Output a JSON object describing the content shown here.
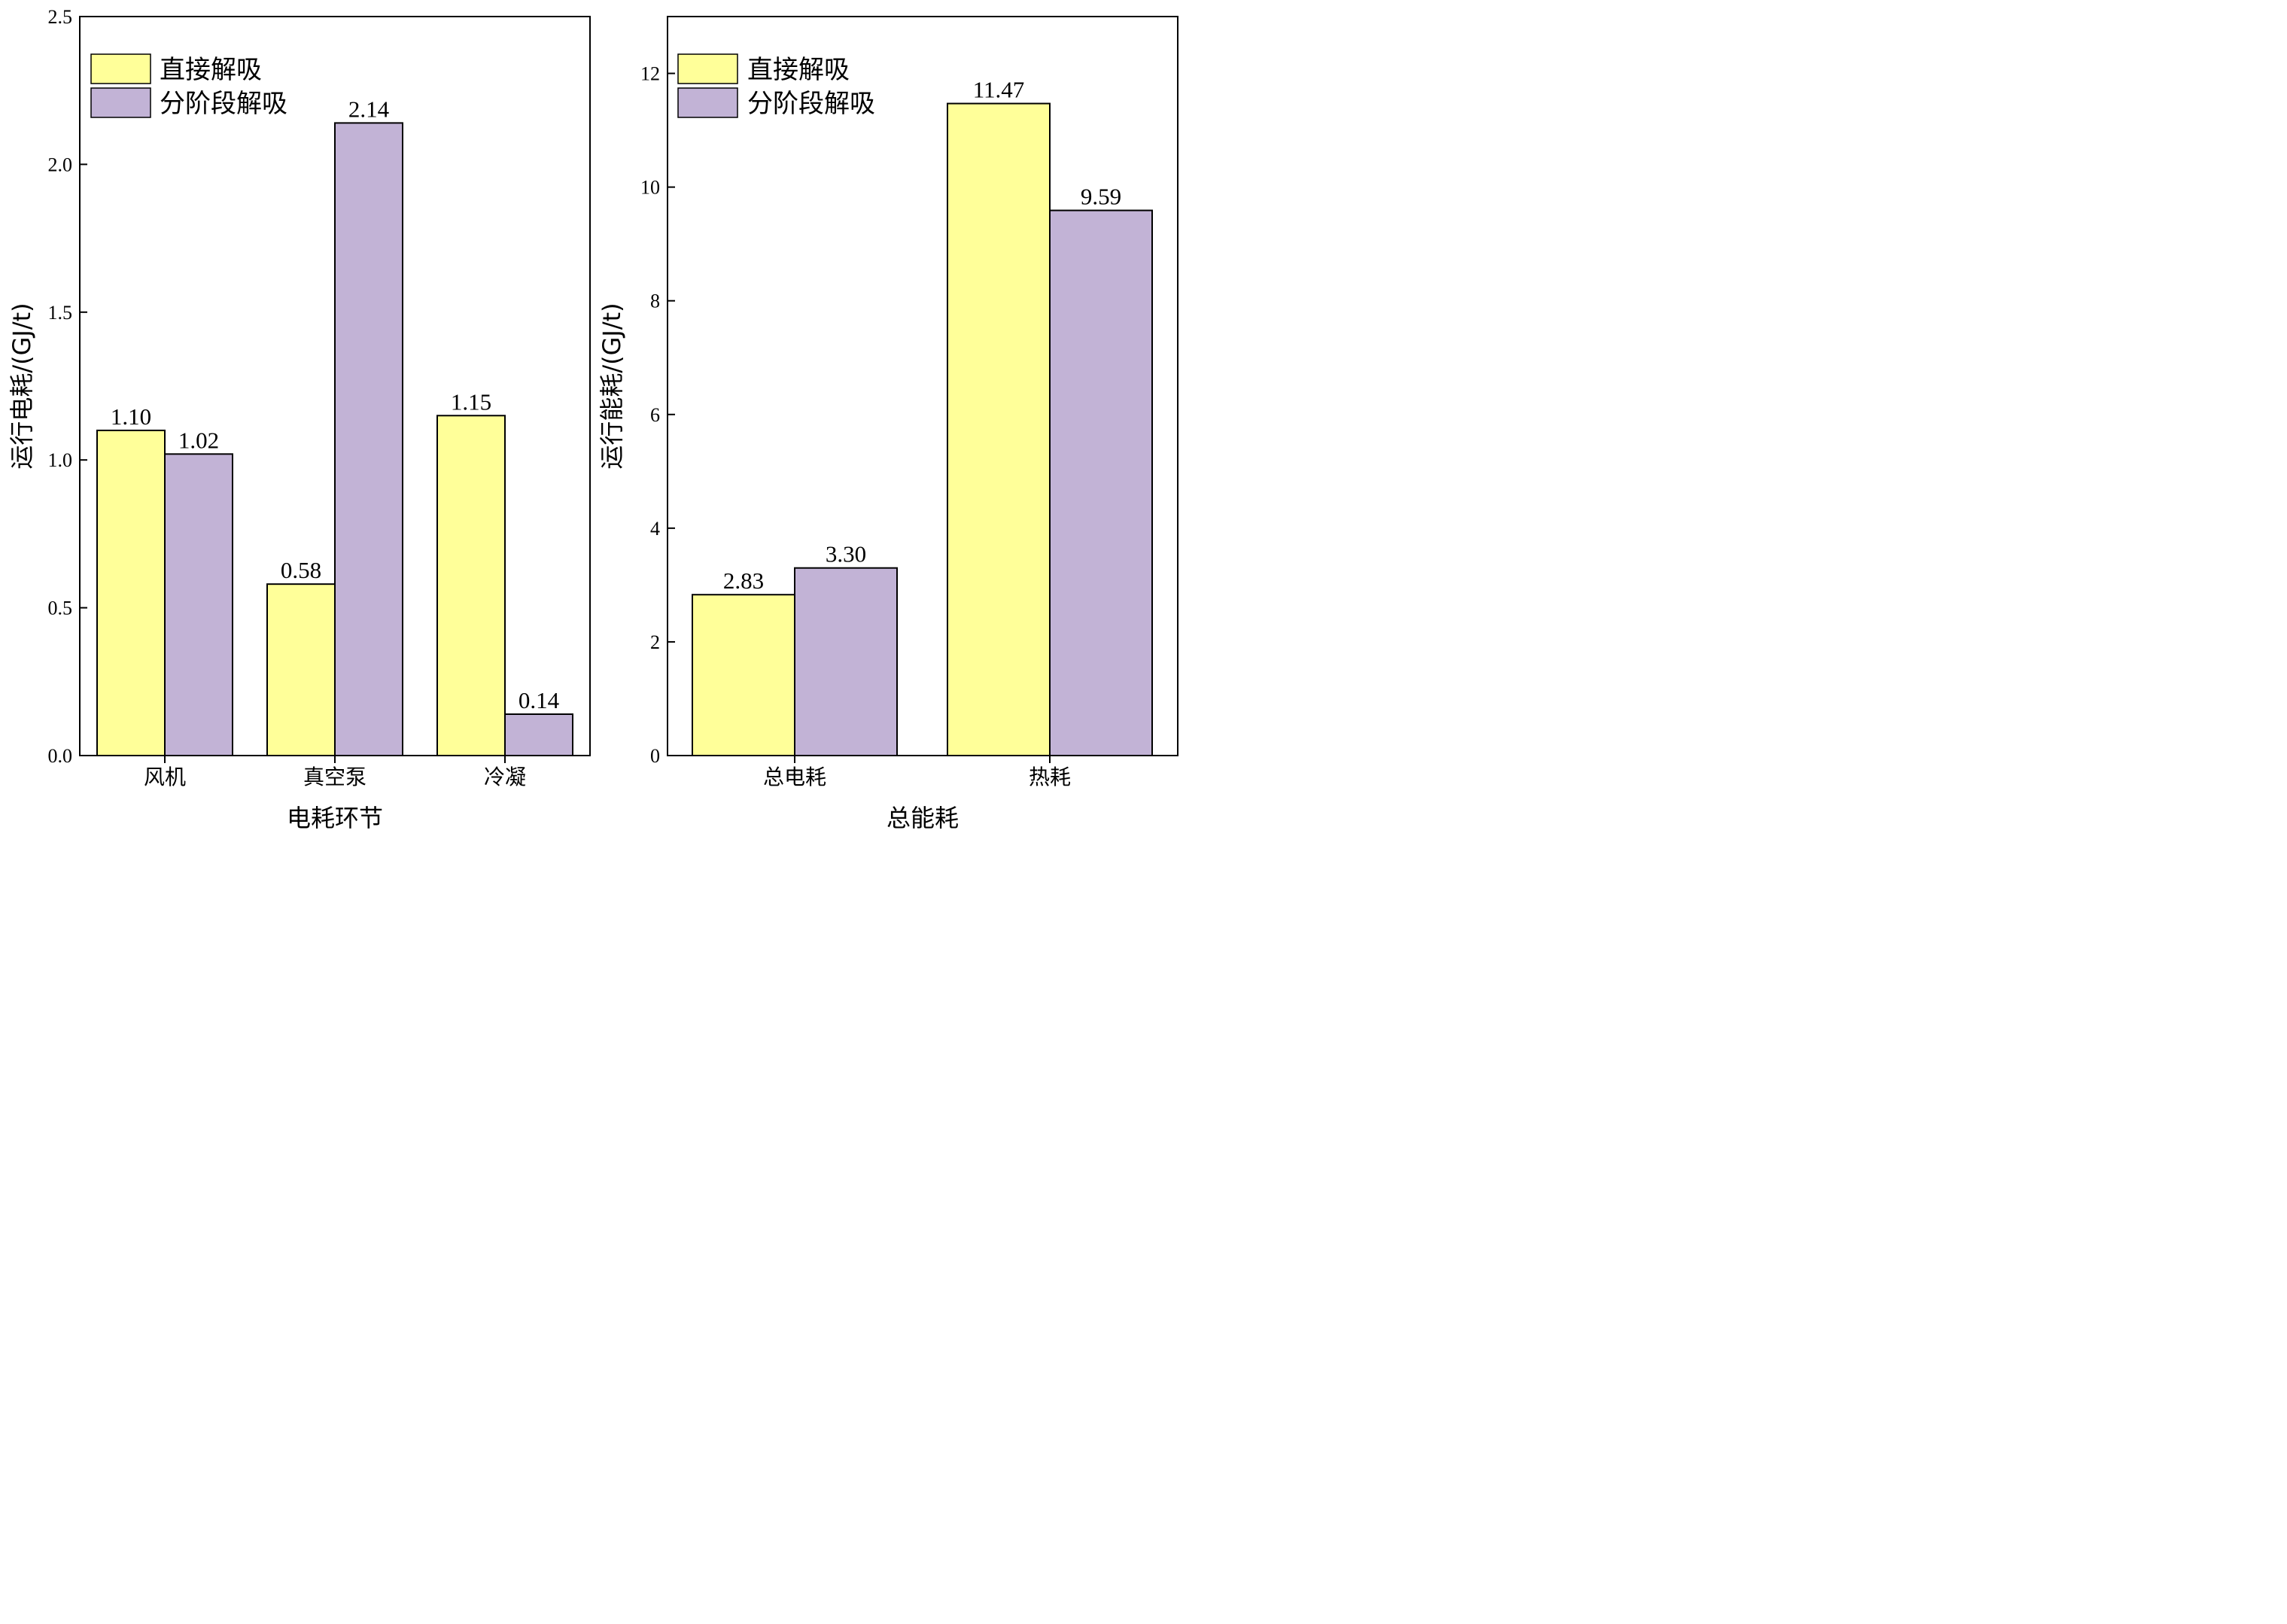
{
  "colors": {
    "series1": "#FFFF99",
    "series2": "#C2B3D6",
    "axis": "#000000"
  },
  "chart_data": [
    {
      "type": "bar",
      "categories": [
        "风机",
        "真空泵",
        "冷凝"
      ],
      "series": [
        {
          "name": "直接解吸",
          "values": [
            1.1,
            0.58,
            1.15
          ],
          "labels": [
            "1.10",
            "0.58",
            "1.15"
          ]
        },
        {
          "name": "分阶段解吸",
          "values": [
            1.02,
            2.14,
            0.14
          ],
          "labels": [
            "1.02",
            "2.14",
            "0.14"
          ]
        }
      ],
      "xlabel": "电耗环节",
      "ylabel": "运行电耗/(GJ/t)",
      "ylim": [
        0,
        2.5
      ],
      "yticks": [
        "0.0",
        "0.5",
        "1.0",
        "1.5",
        "2.0",
        "2.5"
      ],
      "legend": "top-left",
      "grid": false
    },
    {
      "type": "bar",
      "categories": [
        "总电耗",
        "热耗"
      ],
      "series": [
        {
          "name": "直接解吸",
          "values": [
            2.83,
            11.47
          ],
          "labels": [
            "2.83",
            "11.47"
          ]
        },
        {
          "name": "分阶段解吸",
          "values": [
            3.3,
            9.59
          ],
          "labels": [
            "3.30",
            "9.59"
          ]
        }
      ],
      "xlabel": "总能耗",
      "ylabel": "运行能耗/(GJ/t)",
      "ylim": [
        0,
        13
      ],
      "yticks": [
        "0",
        "2",
        "4",
        "6",
        "8",
        "10",
        "12"
      ],
      "legend": "top-left",
      "grid": false
    }
  ]
}
